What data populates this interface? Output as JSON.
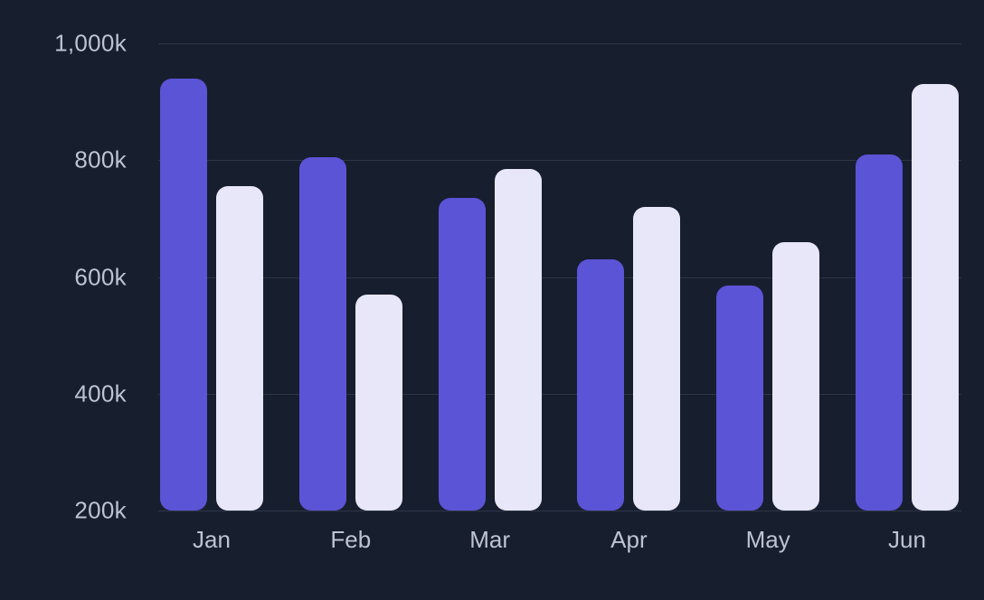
{
  "chart_data": {
    "type": "bar",
    "title": "",
    "categories": [
      "Jan",
      "Feb",
      "Mar",
      "Apr",
      "May",
      "Jun"
    ],
    "series": [
      {
        "name": "series-1",
        "color": "#5B54D6",
        "values": [
          940,
          805,
          735,
          630,
          585,
          810
        ]
      },
      {
        "name": "series-2",
        "color": "#E7E7F9",
        "values": [
          755,
          570,
          785,
          720,
          660,
          930
        ]
      }
    ],
    "y_axis": {
      "min": 200,
      "max": 1000,
      "ticks": [
        1000,
        800,
        600,
        400,
        200
      ],
      "tick_labels": [
        "1,000k",
        "800k",
        "600k",
        "400k",
        "200k"
      ]
    },
    "x_axis_labels": [
      "Jan",
      "Feb",
      "Mar",
      "Apr",
      "May",
      "Jun"
    ],
    "grid": true,
    "legend": "none",
    "unit": "k"
  },
  "theme": {
    "background": "#171E2E",
    "grid_color": "#2E3547",
    "axis_text_color": "#BDC3D1",
    "bar_primary_color": "#5B54D6",
    "bar_secondary_color": "#E7E7F9"
  }
}
